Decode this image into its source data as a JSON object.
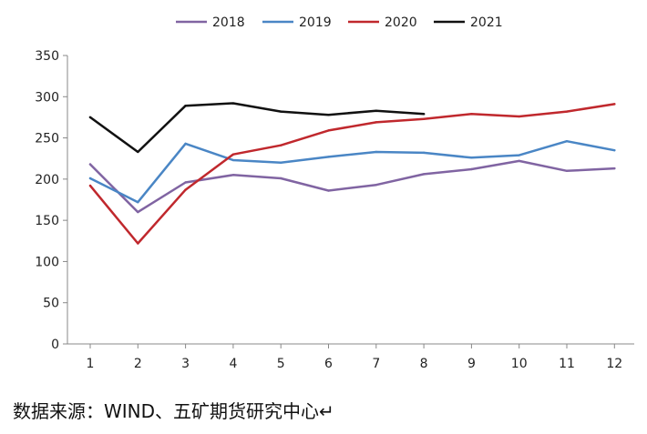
{
  "chart_data": {
    "type": "line",
    "title": "",
    "xlabel": "",
    "ylabel": "",
    "categories": [
      "1",
      "2",
      "3",
      "4",
      "5",
      "6",
      "7",
      "8",
      "9",
      "10",
      "11",
      "12"
    ],
    "ylim": [
      0,
      350
    ],
    "yticks": [
      0,
      50,
      100,
      150,
      200,
      250,
      300,
      350
    ],
    "legend_position": "top",
    "series": [
      {
        "name": "2018",
        "color": "#8064a2",
        "values": [
          218,
          160,
          196,
          205,
          201,
          186,
          193,
          206,
          212,
          222,
          210,
          213
        ]
      },
      {
        "name": "2019",
        "color": "#4a86c5",
        "values": [
          201,
          172,
          243,
          223,
          220,
          227,
          233,
          232,
          226,
          229,
          246,
          235
        ]
      },
      {
        "name": "2020",
        "color": "#c0282d",
        "values": [
          192,
          122,
          187,
          230,
          241,
          259,
          269,
          273,
          279,
          276,
          282,
          291
        ]
      },
      {
        "name": "2021",
        "color": "#111111",
        "values": [
          275,
          233,
          289,
          292,
          282,
          278,
          283,
          279,
          null,
          null,
          null,
          null
        ]
      }
    ]
  },
  "source_text": "数据来源：WIND、五矿期货研究中心↵"
}
